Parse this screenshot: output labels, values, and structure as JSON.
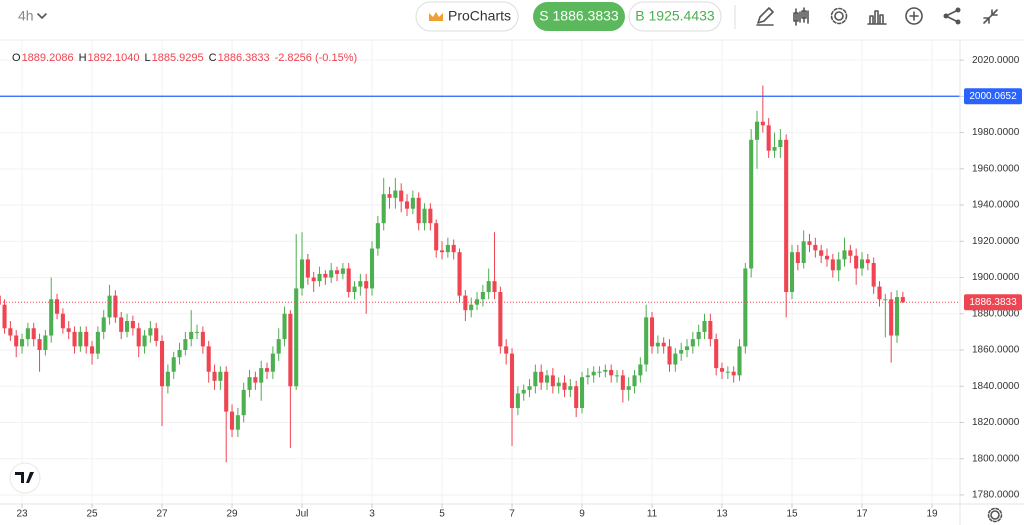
{
  "toolbar": {
    "timeframe": "4h",
    "pro": "ProCharts",
    "sell": "S 1886.3833",
    "buy": "B 1925.4433"
  },
  "ohlc_legend": {
    "labels": [
      "O",
      "H",
      "L",
      "C"
    ],
    "values": [
      "1889.2086",
      "1892.1040",
      "1885.9295",
      "1886.3833"
    ],
    "change": "-2.8256 (-0.15%)"
  },
  "chart_data": {
    "type": "candlestick",
    "colors": {
      "up": "#4caf50",
      "down": "#ef4451"
    },
    "grid": true,
    "xlim": [
      0.22,
      164.8
    ],
    "xticks": [
      {
        "value": 4,
        "label": "23"
      },
      {
        "value": 16,
        "label": "25"
      },
      {
        "value": 28,
        "label": "27"
      },
      {
        "value": 40,
        "label": "29"
      },
      {
        "value": 52,
        "label": "Jul"
      },
      {
        "value": 64,
        "label": "3"
      },
      {
        "value": 76,
        "label": "5"
      },
      {
        "value": 88,
        "label": "7"
      },
      {
        "value": 100,
        "label": "9"
      },
      {
        "value": 112,
        "label": "11"
      },
      {
        "value": 124,
        "label": "13"
      },
      {
        "value": 136,
        "label": "15"
      },
      {
        "value": 148,
        "label": "17"
      },
      {
        "value": 160,
        "label": "19"
      }
    ],
    "ylim": [
      1775,
      2031.1
    ],
    "yticks": [
      {
        "value": 1780,
        "label": "1780.0000"
      },
      {
        "value": 1800,
        "label": "1800.0000"
      },
      {
        "value": 1820,
        "label": "1820.0000"
      },
      {
        "value": 1840,
        "label": "1840.0000"
      },
      {
        "value": 1860,
        "label": "1860.0000"
      },
      {
        "value": 1880,
        "label": "1880.0000"
      },
      {
        "value": 1900,
        "label": "1900.0000"
      },
      {
        "value": 1920,
        "label": "1920.0000"
      },
      {
        "value": 1940,
        "label": "1940.0000"
      },
      {
        "value": 1960,
        "label": "1960.0000"
      },
      {
        "value": 1980,
        "label": "1980.0000"
      },
      {
        "value": 2000,
        "label": "2000.0000"
      },
      {
        "value": 2020,
        "label": "2020.0000"
      }
    ],
    "hlines": [
      {
        "value": 2000.0652,
        "color": "#2962ff",
        "style": "solid"
      },
      {
        "value": 1886.3833,
        "color": "#ef4451",
        "style": "dotted"
      }
    ],
    "series": [
      {
        "open": [
          1890,
          1885,
          1872,
          1868,
          1862,
          1866,
          1872,
          1866,
          1860,
          1868,
          1888,
          1880,
          1872,
          1870,
          1862,
          1870,
          1862,
          1858,
          1870,
          1878,
          1890,
          1878,
          1870,
          1876,
          1872,
          1862,
          1868,
          1872,
          1865,
          1840,
          1848,
          1856,
          1860,
          1866,
          1870,
          1870,
          1862,
          1848,
          1843,
          1848,
          1826,
          1816,
          1824,
          1838,
          1845,
          1842,
          1850,
          1848,
          1858,
          1866,
          1880,
          1840,
          1894,
          1910,
          1900,
          1898,
          1902,
          1900,
          1904,
          1902,
          1905,
          1892,
          1895,
          1898,
          1894,
          1916,
          1930,
          1946,
          1944,
          1948,
          1942,
          1938,
          1944,
          1930,
          1938,
          1930,
          1915,
          1914,
          1918,
          1914,
          1890,
          1882,
          1885,
          1888,
          1892,
          1898,
          1892,
          1862,
          1858,
          1828,
          1836,
          1838,
          1840,
          1848,
          1842,
          1846,
          1840,
          1842,
          1838,
          1840,
          1828,
          1845,
          1846,
          1848,
          1848,
          1849,
          1846,
          1846,
          1838,
          1840,
          1846,
          1852,
          1878,
          1862,
          1864,
          1862,
          1852,
          1858,
          1860,
          1862,
          1866,
          1870,
          1876,
          1866,
          1850,
          1848,
          1848,
          1846,
          1862,
          1905,
          1976,
          1986,
          1984,
          1970,
          1972,
          1976,
          1892,
          1914,
          1908,
          1920,
          1918,
          1915,
          1912,
          1910,
          1904,
          1910,
          1915,
          1912,
          1905,
          1910,
          1908,
          1895,
          1888,
          1888,
          1868,
          1889.2086
        ],
        "high": [
          1893,
          1888,
          1876,
          1871,
          1869,
          1875,
          1875,
          1869,
          1871,
          1900,
          1891,
          1883,
          1876,
          1873,
          1873,
          1873,
          1865,
          1873,
          1882,
          1896,
          1893,
          1881,
          1880,
          1879,
          1875,
          1871,
          1876,
          1875,
          1868,
          1852,
          1859,
          1864,
          1870,
          1882,
          1874,
          1873,
          1865,
          1852,
          1851,
          1851,
          1830,
          1828,
          1842,
          1849,
          1848,
          1854,
          1853,
          1862,
          1872,
          1884,
          1882,
          1924,
          1925,
          1913,
          1903,
          1906,
          1904,
          1908,
          1906,
          1908,
          1908,
          1898,
          1902,
          1902,
          1920,
          1934,
          1955,
          1950,
          1955,
          1952,
          1946,
          1948,
          1947,
          1941,
          1941,
          1932,
          1920,
          1922,
          1921,
          1916,
          1893,
          1889,
          1892,
          1896,
          1905,
          1925,
          1895,
          1866,
          1861,
          1840,
          1841,
          1844,
          1852,
          1852,
          1849,
          1850,
          1845,
          1846,
          1844,
          1843,
          1848,
          1850,
          1851,
          1851,
          1852,
          1852,
          1849,
          1849,
          1845,
          1849,
          1856,
          1885,
          1881,
          1868,
          1867,
          1866,
          1861,
          1864,
          1866,
          1870,
          1874,
          1880,
          1880,
          1869,
          1853,
          1851,
          1851,
          1866,
          1908,
          1982,
          1992,
          2006,
          1988,
          1980,
          1982,
          1979,
          1918,
          1918,
          1926,
          1924,
          1922,
          1918,
          1916,
          1913,
          1914,
          1922,
          1918,
          1916,
          1914,
          1913,
          1911,
          1898,
          1891,
          1892,
          1893,
          1892.104
        ],
        "low": [
          1882,
          1869,
          1865,
          1856,
          1858,
          1862,
          1862,
          1848,
          1857,
          1864,
          1877,
          1869,
          1866,
          1858,
          1859,
          1858,
          1852,
          1855,
          1866,
          1874,
          1875,
          1866,
          1867,
          1868,
          1856,
          1858,
          1864,
          1862,
          1818,
          1836,
          1844,
          1852,
          1857,
          1862,
          1866,
          1858,
          1842,
          1838,
          1838,
          1798,
          1812,
          1812,
          1820,
          1834,
          1838,
          1832,
          1844,
          1844,
          1854,
          1862,
          1806,
          1838,
          1890,
          1896,
          1892,
          1895,
          1896,
          1897,
          1898,
          1899,
          1889,
          1888,
          1890,
          1880,
          1890,
          1912,
          1926,
          1938,
          1938,
          1936,
          1934,
          1935,
          1926,
          1926,
          1926,
          1911,
          1910,
          1911,
          1910,
          1886,
          1876,
          1878,
          1882,
          1884,
          1888,
          1888,
          1858,
          1852,
          1807,
          1824,
          1832,
          1834,
          1836,
          1838,
          1838,
          1836,
          1836,
          1834,
          1834,
          1823,
          1825,
          1841,
          1842,
          1845,
          1845,
          1842,
          1842,
          1831,
          1832,
          1836,
          1842,
          1848,
          1858,
          1858,
          1858,
          1848,
          1848,
          1854,
          1856,
          1858,
          1862,
          1866,
          1862,
          1846,
          1844,
          1844,
          1842,
          1843,
          1858,
          1900,
          1960,
          1980,
          1966,
          1966,
          1966,
          1878,
          1888,
          1904,
          1905,
          1914,
          1911,
          1908,
          1906,
          1900,
          1898,
          1906,
          1908,
          1896,
          1901,
          1904,
          1891,
          1884,
          1867,
          1853,
          1864,
          1885.9295
        ],
        "close": [
          1885,
          1872,
          1868,
          1862,
          1866,
          1872,
          1866,
          1860,
          1868,
          1888,
          1880,
          1872,
          1870,
          1862,
          1870,
          1862,
          1858,
          1870,
          1878,
          1890,
          1878,
          1870,
          1876,
          1872,
          1862,
          1868,
          1872,
          1865,
          1840,
          1848,
          1856,
          1860,
          1866,
          1870,
          1870,
          1862,
          1848,
          1843,
          1848,
          1826,
          1816,
          1824,
          1838,
          1845,
          1842,
          1850,
          1848,
          1858,
          1866,
          1880,
          1840,
          1894,
          1910,
          1900,
          1898,
          1902,
          1900,
          1904,
          1902,
          1905,
          1892,
          1895,
          1898,
          1894,
          1916,
          1930,
          1946,
          1944,
          1948,
          1942,
          1938,
          1944,
          1930,
          1938,
          1930,
          1915,
          1914,
          1918,
          1914,
          1890,
          1882,
          1885,
          1888,
          1892,
          1898,
          1892,
          1862,
          1858,
          1828,
          1836,
          1838,
          1840,
          1848,
          1842,
          1846,
          1840,
          1842,
          1838,
          1840,
          1828,
          1845,
          1846,
          1848,
          1848,
          1849,
          1846,
          1846,
          1838,
          1840,
          1846,
          1852,
          1878,
          1862,
          1864,
          1862,
          1852,
          1858,
          1860,
          1862,
          1866,
          1870,
          1876,
          1866,
          1850,
          1848,
          1848,
          1846,
          1862,
          1905,
          1976,
          1986,
          1984,
          1970,
          1972,
          1976,
          1892,
          1914,
          1908,
          1920,
          1918,
          1915,
          1912,
          1910,
          1904,
          1910,
          1915,
          1912,
          1905,
          1910,
          1908,
          1895,
          1888,
          1888,
          1868,
          1889.2086,
          1886.3833
        ]
      }
    ]
  }
}
